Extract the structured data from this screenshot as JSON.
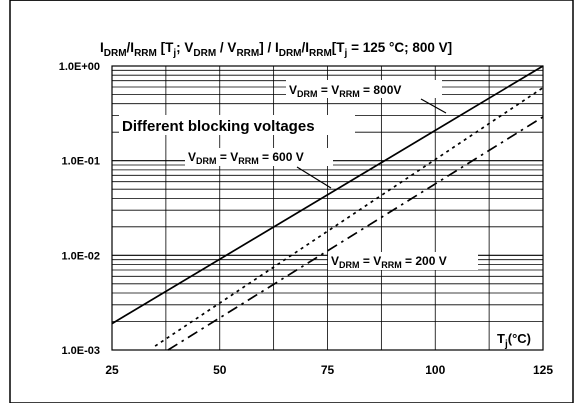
{
  "chart_data": {
    "type": "line",
    "title_parts": {
      "i_drm": "I",
      "drm": "DRM",
      "slash1": "/I",
      "rrm1": "RRM",
      "bracket_open": " [T",
      "j1": "j",
      "semi_v": "; V",
      "drm2": "DRM",
      "slash_v": " / V",
      "rrm2": "RRM",
      "bracket_close": "] / I",
      "drm3": "DRM",
      "slash2": "/I",
      "rrm3": "RRM",
      "ref_open": "[T",
      "j2": "j",
      "ref_close": " = 125 °C; 800 V]"
    },
    "xlabel": {
      "t": "T",
      "j": "j",
      "unit": "(°C)"
    },
    "x_ticks": [
      "25",
      "50",
      "75",
      "100",
      "125"
    ],
    "y_ticks": [
      "1.0E-03",
      "1.0E-02",
      "1.0E-01",
      "1.0E+00"
    ],
    "xlim": [
      25,
      125
    ],
    "ylim": [
      0.001,
      1
    ],
    "y_scale": "log",
    "grid": true,
    "series": [
      {
        "label_parts": {
          "v": "V",
          "drm": "DRM",
          "eq": " = V",
          "rrm": "RRM",
          "val": " = 800V"
        },
        "style": "solid",
        "x": [
          25,
          125
        ],
        "y": [
          0.0019,
          1.0
        ]
      },
      {
        "label_parts": {
          "v": "V",
          "drm": "DRM",
          "eq": " = V",
          "rrm": "RRM",
          "val": " = 600 V"
        },
        "style": "dotted",
        "x": [
          35,
          125
        ],
        "y": [
          0.0011,
          0.59
        ]
      },
      {
        "label_parts": {
          "v": "V",
          "drm": "DRM",
          "eq": " = V",
          "rrm": "RRM",
          "val": " = 200 V"
        },
        "style": "dashdot",
        "x": [
          38,
          125
        ],
        "y": [
          0.001,
          0.29
        ]
      }
    ],
    "annotation": "Different blocking voltages"
  }
}
